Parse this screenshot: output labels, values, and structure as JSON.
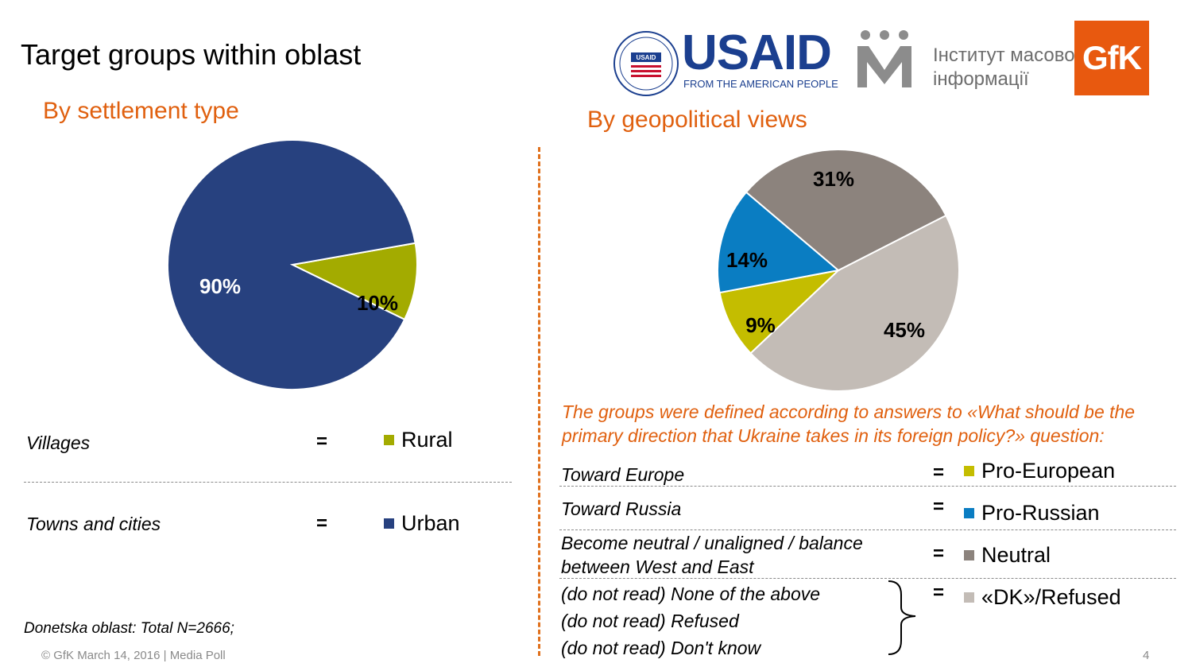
{
  "slide": {
    "title": "Target groups within oblast",
    "left_subtitle": "By settlement type",
    "right_subtitle": "By geopolitical views",
    "note": "The groups were defined according to answers to «What should be the primary direction that Ukraine takes in its foreign policy?» question:",
    "total": "Donetska oblast: Total N=2666;",
    "footer": "© GfK March 14, 2016 | Media Poll",
    "page_number": "4"
  },
  "logos": {
    "usaid_text": "USAID",
    "usaid_tagline": "FROM THE AMERICAN PEOPLE",
    "usaid_seal_text": "USAID",
    "imi_line1": "Інститут масової",
    "imi_line2": "інформації",
    "gfk_text": "GfK"
  },
  "left_rows": [
    {
      "text": "Villages",
      "eq": "=",
      "label": "Rural",
      "color": "#a3ab00"
    },
    {
      "text": "Towns and cities",
      "eq": "=",
      "label": "Urban",
      "color": "#27417f"
    }
  ],
  "right_rows": [
    {
      "text": "Toward Europe",
      "eq": "=",
      "label": "Pro-European",
      "color": "#c4bd00"
    },
    {
      "text": "Toward Russia",
      "eq": "=",
      "label": "Pro-Russian",
      "color": "#0a7dc2"
    },
    {
      "text": "Become neutral / unaligned / balance",
      "text2": "between West and East",
      "eq": "=",
      "label": "Neutral",
      "color": "#8c837d"
    },
    {
      "text": "(do not read) None of the above",
      "text2": "(do not read) Refused",
      "text3": "(do not read) Don't know",
      "eq": "=",
      "label": "«DK»/Refused",
      "color": "#c3bcb6"
    }
  ],
  "chart_data": [
    {
      "type": "pie",
      "title": "By settlement type",
      "slices": [
        {
          "label": "Rural",
          "value": 10,
          "display": "10%",
          "color": "#a3ab00",
          "label_color": "#000000"
        },
        {
          "label": "Urban",
          "value": 90,
          "display": "90%",
          "color": "#27417f",
          "label_color": "#ffffff"
        }
      ]
    },
    {
      "type": "pie",
      "title": "By geopolitical views",
      "slices": [
        {
          "label": "«DK»/Refused",
          "value": 45,
          "display": "45%",
          "color": "#c3bcb6",
          "label_color": "#000000"
        },
        {
          "label": "Pro-European",
          "value": 9,
          "display": "9%",
          "color": "#c4bd00",
          "label_color": "#000000"
        },
        {
          "label": "Pro-Russian",
          "value": 14,
          "display": "14%",
          "color": "#0a7dc2",
          "label_color": "#000000"
        },
        {
          "label": "Neutral",
          "value": 31,
          "display": "31%",
          "color": "#8c837d",
          "label_color": "#000000"
        }
      ]
    }
  ]
}
